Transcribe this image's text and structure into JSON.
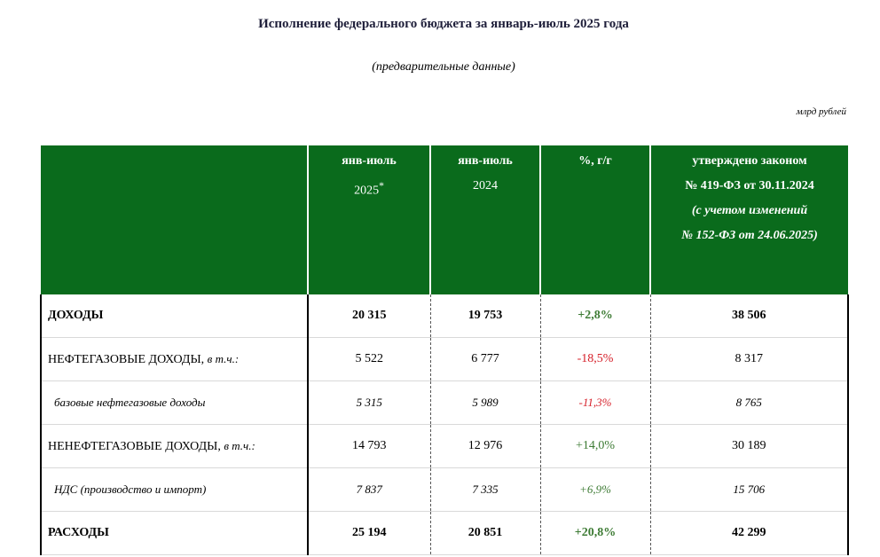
{
  "title": "Исполнение федерального бюджета за январь-июль 2025 года",
  "subtitle": "(предварительные данные)",
  "units": "млрд рублей",
  "header": {
    "col1_line1": "янв-июль",
    "col1_line2": "2025",
    "col1_mark": "*",
    "col2_line1": "янв-июль",
    "col2_line2": "2024",
    "col3": "%, г/г",
    "col4_line1": "утверждено законом",
    "col4_line2": "№ 419-ФЗ от 30.11.2024",
    "col4_line3": "(с учетом изменений",
    "col4_line4": "№ 152-ФЗ от 24.06.2025)"
  },
  "rows": [
    {
      "label": "ДОХОДЫ",
      "suffix": "",
      "v2025": "20 315",
      "v2024": "19 753",
      "pct": "+2,8%",
      "law": "38 506"
    },
    {
      "label": "НЕФТЕГАЗОВЫЕ ДОХОДЫ, ",
      "suffix": "в т.ч.:",
      "v2025": "5 522",
      "v2024": "6 777",
      "pct": "-18,5%",
      "law": "8 317"
    },
    {
      "label": "базовые нефтегазовые доходы",
      "suffix": "",
      "v2025": "5 315",
      "v2024": "5 989",
      "pct": "-11,3%",
      "law": "8 765"
    },
    {
      "label": "НЕНЕФТЕГАЗОВЫЕ ДОХОДЫ, ",
      "suffix": "в т.ч.:",
      "v2025": "14 793",
      "v2024": "12 976",
      "pct": "+14,0%",
      "law": "30 189"
    },
    {
      "label": "НДС (производство и импорт)",
      "suffix": "",
      "v2025": "7 837",
      "v2024": "7 335",
      "pct": "+6,9%",
      "law": "15 706"
    },
    {
      "label": "РАСХОДЫ",
      "suffix": "",
      "v2025": "25 194",
      "v2024": "20 851",
      "pct": "+20,8%",
      "law": "42 299"
    }
  ],
  "colors": {
    "header_bg": "#0a6b1c",
    "positive": "#3d7b34",
    "negative": "#d6202a"
  }
}
